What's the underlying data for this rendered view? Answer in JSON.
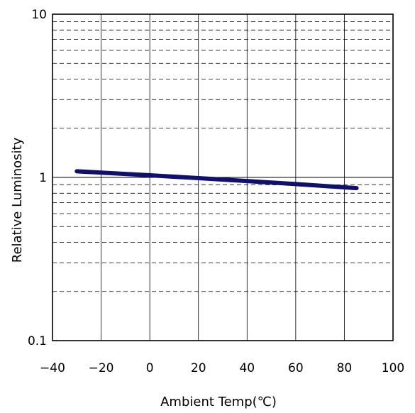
{
  "chart_data": {
    "type": "line",
    "title": "",
    "xlabel": "Ambient Temp(℃)",
    "ylabel": "Relative Luminosity",
    "xlim": [
      -40,
      100
    ],
    "ylim": [
      0.1,
      10
    ],
    "yscale": "log",
    "x_ticks": [
      "−40",
      "−20",
      "0",
      "20",
      "40",
      "60",
      "80",
      "100"
    ],
    "y_ticks": [
      "0.1",
      "1",
      "10"
    ],
    "grid": "on",
    "series": [
      {
        "color": "#0f0f6e",
        "x": [
          -30,
          -20,
          0,
          20,
          40,
          60,
          85
        ],
        "y": [
          1.09,
          1.07,
          1.03,
          0.99,
          0.95,
          0.91,
          0.86
        ]
      }
    ]
  }
}
